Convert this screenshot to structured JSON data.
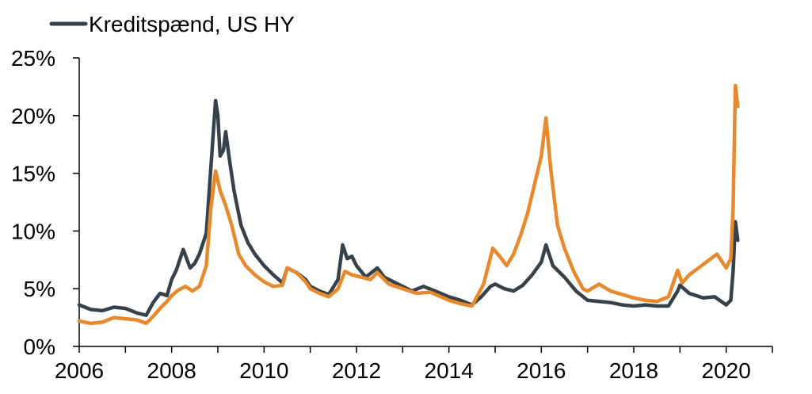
{
  "chart_data": {
    "type": "line",
    "title": "",
    "xlabel": "",
    "ylabel": "",
    "xlim": [
      2006,
      2021
    ],
    "ylim": [
      0,
      25
    ],
    "x_ticks": [
      2006,
      2008,
      2010,
      2012,
      2014,
      2016,
      2018,
      2020
    ],
    "x_tick_labels": [
      "2006",
      "2008",
      "2010",
      "2012",
      "2014",
      "2016",
      "2018",
      "2020"
    ],
    "y_ticks": [
      0,
      5,
      10,
      15,
      20,
      25
    ],
    "y_tick_labels": [
      "0%",
      "5%",
      "10%",
      "15%",
      "20%",
      "25%"
    ],
    "grid": false,
    "legend": {
      "position": "top-left",
      "entries": [
        "Kreditspænd, US HY"
      ]
    },
    "colors": {
      "series_dark": "#36414a",
      "series_orange": "#e8892b",
      "axis": "#000000"
    },
    "series": [
      {
        "name": "Kreditspænd, US HY",
        "color": "#36414a",
        "points": [
          [
            2006.0,
            3.6
          ],
          [
            2006.25,
            3.2
          ],
          [
            2006.5,
            3.1
          ],
          [
            2006.75,
            3.4
          ],
          [
            2007.0,
            3.3
          ],
          [
            2007.25,
            2.9
          ],
          [
            2007.45,
            2.7
          ],
          [
            2007.6,
            3.8
          ],
          [
            2007.75,
            4.6
          ],
          [
            2007.9,
            4.4
          ],
          [
            2008.0,
            5.8
          ],
          [
            2008.1,
            6.6
          ],
          [
            2008.25,
            8.4
          ],
          [
            2008.4,
            6.8
          ],
          [
            2008.5,
            7.2
          ],
          [
            2008.6,
            8.0
          ],
          [
            2008.75,
            9.8
          ],
          [
            2008.85,
            15.5
          ],
          [
            2008.95,
            21.3
          ],
          [
            2009.0,
            20.0
          ],
          [
            2009.05,
            16.5
          ],
          [
            2009.12,
            17.0
          ],
          [
            2009.17,
            18.6
          ],
          [
            2009.25,
            16.2
          ],
          [
            2009.35,
            13.5
          ],
          [
            2009.5,
            10.5
          ],
          [
            2009.65,
            9.0
          ],
          [
            2009.8,
            8.0
          ],
          [
            2010.0,
            7.0
          ],
          [
            2010.2,
            6.2
          ],
          [
            2010.4,
            5.5
          ],
          [
            2010.5,
            6.8
          ],
          [
            2010.7,
            6.4
          ],
          [
            2010.9,
            5.8
          ],
          [
            2011.0,
            5.2
          ],
          [
            2011.2,
            4.8
          ],
          [
            2011.4,
            4.5
          ],
          [
            2011.6,
            5.8
          ],
          [
            2011.7,
            8.8
          ],
          [
            2011.8,
            7.6
          ],
          [
            2011.9,
            7.8
          ],
          [
            2012.0,
            7.0
          ],
          [
            2012.2,
            6.0
          ],
          [
            2012.45,
            6.8
          ],
          [
            2012.6,
            6.0
          ],
          [
            2012.8,
            5.6
          ],
          [
            2013.0,
            5.2
          ],
          [
            2013.2,
            4.8
          ],
          [
            2013.45,
            5.2
          ],
          [
            2013.7,
            4.8
          ],
          [
            2014.0,
            4.3
          ],
          [
            2014.25,
            4.0
          ],
          [
            2014.5,
            3.6
          ],
          [
            2014.7,
            4.3
          ],
          [
            2014.9,
            5.2
          ],
          [
            2015.0,
            5.4
          ],
          [
            2015.2,
            5.0
          ],
          [
            2015.4,
            4.8
          ],
          [
            2015.6,
            5.3
          ],
          [
            2015.8,
            6.2
          ],
          [
            2016.0,
            7.3
          ],
          [
            2016.1,
            8.8
          ],
          [
            2016.25,
            7.0
          ],
          [
            2016.5,
            6.0
          ],
          [
            2016.75,
            4.8
          ],
          [
            2017.0,
            4.0
          ],
          [
            2017.25,
            3.9
          ],
          [
            2017.5,
            3.8
          ],
          [
            2017.75,
            3.6
          ],
          [
            2018.0,
            3.5
          ],
          [
            2018.25,
            3.6
          ],
          [
            2018.5,
            3.5
          ],
          [
            2018.75,
            3.5
          ],
          [
            2018.95,
            4.8
          ],
          [
            2019.0,
            5.3
          ],
          [
            2019.2,
            4.6
          ],
          [
            2019.5,
            4.2
          ],
          [
            2019.75,
            4.3
          ],
          [
            2020.0,
            3.6
          ],
          [
            2020.1,
            4.0
          ],
          [
            2020.15,
            6.5
          ],
          [
            2020.2,
            10.8
          ],
          [
            2020.25,
            9.2
          ]
        ]
      },
      {
        "name": "",
        "color": "#e8892b",
        "points": [
          [
            2006.0,
            2.2
          ],
          [
            2006.25,
            2.0
          ],
          [
            2006.5,
            2.1
          ],
          [
            2006.75,
            2.5
          ],
          [
            2007.0,
            2.4
          ],
          [
            2007.25,
            2.3
          ],
          [
            2007.45,
            2.0
          ],
          [
            2007.6,
            2.6
          ],
          [
            2007.75,
            3.3
          ],
          [
            2007.9,
            3.9
          ],
          [
            2008.0,
            4.4
          ],
          [
            2008.15,
            4.9
          ],
          [
            2008.3,
            5.2
          ],
          [
            2008.45,
            4.8
          ],
          [
            2008.6,
            5.2
          ],
          [
            2008.75,
            7.0
          ],
          [
            2008.85,
            12.0
          ],
          [
            2008.95,
            15.2
          ],
          [
            2009.05,
            13.5
          ],
          [
            2009.17,
            12.2
          ],
          [
            2009.3,
            10.5
          ],
          [
            2009.45,
            8.0
          ],
          [
            2009.6,
            7.0
          ],
          [
            2009.8,
            6.2
          ],
          [
            2010.0,
            5.6
          ],
          [
            2010.2,
            5.2
          ],
          [
            2010.4,
            5.3
          ],
          [
            2010.5,
            6.8
          ],
          [
            2010.7,
            6.4
          ],
          [
            2010.9,
            5.6
          ],
          [
            2011.0,
            5.0
          ],
          [
            2011.2,
            4.6
          ],
          [
            2011.4,
            4.3
          ],
          [
            2011.6,
            5.0
          ],
          [
            2011.75,
            6.5
          ],
          [
            2011.9,
            6.2
          ],
          [
            2012.1,
            6.0
          ],
          [
            2012.3,
            5.8
          ],
          [
            2012.45,
            6.4
          ],
          [
            2012.7,
            5.4
          ],
          [
            2013.0,
            5.0
          ],
          [
            2013.3,
            4.6
          ],
          [
            2013.6,
            4.7
          ],
          [
            2014.0,
            4.0
          ],
          [
            2014.25,
            3.7
          ],
          [
            2014.5,
            3.5
          ],
          [
            2014.75,
            5.4
          ],
          [
            2014.95,
            8.5
          ],
          [
            2015.1,
            7.8
          ],
          [
            2015.25,
            7.0
          ],
          [
            2015.4,
            8.0
          ],
          [
            2015.55,
            9.6
          ],
          [
            2015.7,
            11.5
          ],
          [
            2015.85,
            14.0
          ],
          [
            2016.0,
            16.5
          ],
          [
            2016.1,
            19.8
          ],
          [
            2016.2,
            15.5
          ],
          [
            2016.35,
            10.5
          ],
          [
            2016.5,
            8.5
          ],
          [
            2016.7,
            6.5
          ],
          [
            2016.9,
            5.0
          ],
          [
            2017.0,
            4.8
          ],
          [
            2017.25,
            5.4
          ],
          [
            2017.5,
            4.8
          ],
          [
            2017.75,
            4.5
          ],
          [
            2018.0,
            4.2
          ],
          [
            2018.25,
            4.0
          ],
          [
            2018.5,
            3.9
          ],
          [
            2018.75,
            4.3
          ],
          [
            2018.95,
            6.6
          ],
          [
            2019.05,
            5.5
          ],
          [
            2019.2,
            6.2
          ],
          [
            2019.4,
            6.8
          ],
          [
            2019.6,
            7.4
          ],
          [
            2019.8,
            8.0
          ],
          [
            2020.0,
            6.8
          ],
          [
            2020.1,
            7.6
          ],
          [
            2020.15,
            12.0
          ],
          [
            2020.2,
            22.6
          ],
          [
            2020.25,
            20.8
          ]
        ]
      }
    ]
  }
}
